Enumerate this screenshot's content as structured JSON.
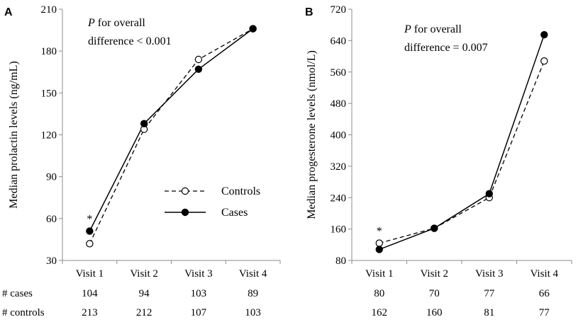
{
  "chart_data": [
    {
      "type": "line",
      "panel_label": "A",
      "ylabel": "Median prolactin levels (ng/mL)",
      "categories": [
        "Visit 1",
        "Visit 2",
        "Visit 3",
        "Visit 4"
      ],
      "ylim": [
        30,
        210
      ],
      "yticks": [
        30,
        60,
        90,
        120,
        150,
        180,
        210
      ],
      "series": [
        {
          "name": "Controls",
          "style": "dashed",
          "marker": "open-circle",
          "values": [
            42,
            124,
            174,
            196
          ]
        },
        {
          "name": "Cases",
          "style": "solid",
          "marker": "filled-circle",
          "values": [
            51,
            128,
            167,
            196
          ]
        }
      ],
      "annotation": {
        "line1_italic": "P",
        "line1_rest": " for overall",
        "line2": "difference < 0.001"
      },
      "significance_marker": {
        "category": "Visit 1",
        "text": "*"
      },
      "counts": {
        "cases_label": "# cases",
        "controls_label": "# controls",
        "cases": [
          "104",
          "94",
          "103",
          "89"
        ],
        "controls": [
          "213",
          "212",
          "107",
          "103"
        ]
      },
      "legend": {
        "placement": "center-right",
        "entries": [
          "Controls",
          "Cases"
        ]
      }
    },
    {
      "type": "line",
      "panel_label": "B",
      "ylabel": "Median progesterone levels (nmol/L)",
      "categories": [
        "Visit 1",
        "Visit 2",
        "Visit 3",
        "Visit 4"
      ],
      "ylim": [
        80,
        720
      ],
      "yticks": [
        80,
        160,
        240,
        320,
        400,
        480,
        560,
        640,
        720
      ],
      "series": [
        {
          "name": "Controls",
          "style": "dashed",
          "marker": "open-circle",
          "values": [
            124,
            162,
            240,
            588
          ]
        },
        {
          "name": "Cases",
          "style": "solid",
          "marker": "filled-circle",
          "values": [
            108,
            162,
            250,
            655
          ]
        }
      ],
      "annotation": {
        "line1_italic": "P",
        "line1_rest": " for overall",
        "line2": "difference = 0.007"
      },
      "significance_marker": {
        "category": "Visit 1",
        "text": "*"
      },
      "counts": {
        "cases": [
          "80",
          "70",
          "77",
          "66"
        ],
        "controls": [
          "162",
          "160",
          "81",
          "77"
        ]
      }
    }
  ]
}
